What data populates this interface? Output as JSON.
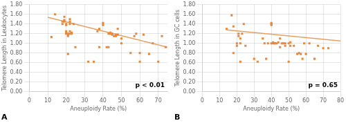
{
  "chart_data": [
    {
      "type": "scatter",
      "title": "A",
      "x_label": "Aneuploidy Rate (%)",
      "y_label": "Telomere Length in Leukocytes",
      "annotations": [
        "p < 0.01"
      ],
      "xlim": [
        0,
        75
      ],
      "ylim": [
        0,
        1.8
      ],
      "xticks": [
        0,
        10,
        20,
        30,
        40,
        50,
        60,
        70
      ],
      "yticks": [
        {
          "value": 0,
          "label": "0.00"
        },
        {
          "value": 0.2,
          "label": "0.20"
        },
        {
          "value": 0.4,
          "label": "0.40"
        },
        {
          "value": 0.6,
          "label": "0.60"
        },
        {
          "value": 0.8,
          "label": "0.80"
        },
        {
          "value": 1.0,
          "label": "1.00"
        },
        {
          "value": 1.2,
          "label": "1.20"
        },
        {
          "value": 1.4,
          "label": "1.40"
        },
        {
          "value": 1.6,
          "label": "1.60"
        },
        {
          "value": 1.8,
          "label": "1.80"
        }
      ],
      "grid": true,
      "series": [
        {
          "type": "scatter",
          "color": "#E8883A",
          "marker": "square",
          "x": [
            12,
            14,
            18,
            18,
            19,
            19,
            19,
            20,
            20,
            20,
            20,
            20,
            21,
            21,
            21,
            21,
            22,
            22,
            22,
            22,
            22,
            23,
            23,
            24,
            25,
            32,
            35,
            37,
            38,
            38,
            40,
            40,
            42,
            43,
            43,
            44,
            44,
            45,
            45,
            46,
            47,
            47,
            48,
            48,
            50,
            50,
            55,
            57,
            58,
            60,
            60,
            62,
            65,
            67,
            70,
            72,
            74
          ],
          "values": [
            1.13,
            1.6,
            1.4,
            1.45,
            1.45,
            1.48,
            1.55,
            1.2,
            1.22,
            1.25,
            1.38,
            1.4,
            1.2,
            1.18,
            1.15,
            0.78,
            1.2,
            1.25,
            1.4,
            1.45,
            1.5,
            1.2,
            1.22,
            1.4,
            0.92,
            0.62,
            0.62,
            1.25,
            1.3,
            0.92,
            1.38,
            1.42,
            0.92,
            1.2,
            0.92,
            1.2,
            1.22,
            1.18,
            1.2,
            1.15,
            1.15,
            1.18,
            1.18,
            1.3,
            1.0,
            1.1,
            0.8,
            1.15,
            1.2,
            0.62,
            0.8,
            1.18,
            0.78,
            1.0,
            0.62,
            1.15,
            0.92
          ]
        },
        {
          "type": "line",
          "color": "#E8a060",
          "x": [
            10,
            75
          ],
          "values": [
            1.54,
            0.92
          ]
        }
      ]
    },
    {
      "type": "scatter",
      "title": "B",
      "x_label": "Aneuploidy Rate (%)",
      "y_label": "Telomere Length in GC cells",
      "annotations": [
        "p = 0.65"
      ],
      "xlim": [
        0,
        80
      ],
      "ylim": [
        0,
        1.8
      ],
      "xticks": [
        0,
        10,
        20,
        30,
        40,
        50,
        60,
        70,
        80
      ],
      "yticks": [
        {
          "value": 0,
          "label": "0.00"
        },
        {
          "value": 0.2,
          "label": "0.20"
        },
        {
          "value": 0.4,
          "label": "0.40"
        },
        {
          "value": 0.6,
          "label": "0.60"
        },
        {
          "value": 0.8,
          "label": "0.80"
        },
        {
          "value": 1.0,
          "label": "1.00"
        },
        {
          "value": 1.2,
          "label": "1.20"
        },
        {
          "value": 1.4,
          "label": "1.40"
        },
        {
          "value": 1.6,
          "label": "1.60"
        },
        {
          "value": 1.8,
          "label": "1.80"
        }
      ],
      "grid": true,
      "series": [
        {
          "type": "scatter",
          "color": "#E8883A",
          "marker": "square",
          "x": [
            14,
            17,
            18,
            18,
            20,
            20,
            21,
            21,
            22,
            22,
            22,
            23,
            24,
            25,
            30,
            32,
            35,
            36,
            37,
            38,
            40,
            40,
            40,
            40,
            41,
            41,
            42,
            42,
            43,
            44,
            45,
            45,
            46,
            47,
            48,
            48,
            50,
            50,
            51,
            51,
            53,
            55,
            56,
            57,
            58,
            59,
            60,
            62,
            65,
            67,
            70,
            73
          ],
          "values": [
            1.3,
            1.58,
            0.8,
            1.35,
            0.95,
            1.0,
            1.15,
            1.2,
            1.0,
            1.1,
            0.62,
            1.2,
            1.4,
            0.95,
            0.68,
            0.62,
            1.1,
            1.0,
            0.68,
            1.0,
            1.0,
            1.38,
            1.4,
            1.42,
            1.0,
            1.02,
            1.0,
            1.0,
            1.0,
            1.02,
            0.92,
            1.1,
            1.0,
            1.0,
            0.95,
            1.0,
            0.62,
            1.0,
            0.95,
            1.02,
            0.95,
            0.78,
            0.8,
            0.78,
            0.68,
            1.0,
            0.78,
            1.0,
            0.68,
            0.95,
            0.9,
            0.9
          ]
        },
        {
          "type": "line",
          "color": "#E8a060",
          "x": [
            14,
            80
          ],
          "values": [
            1.28,
            1.05
          ]
        }
      ]
    }
  ]
}
